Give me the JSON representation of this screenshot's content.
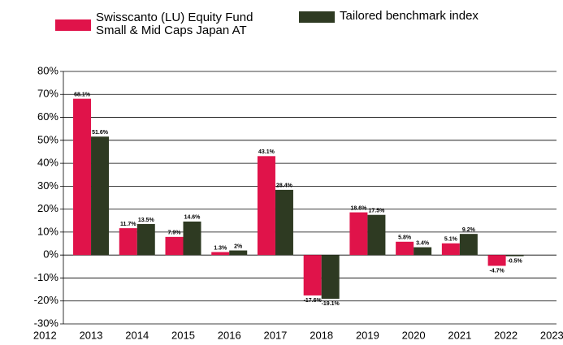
{
  "chart_data": {
    "type": "bar",
    "x": [
      2013,
      2014,
      2015,
      2016,
      2017,
      2018,
      2019,
      2020,
      2021,
      2022
    ],
    "xlim": [
      2012.4,
      2023.1
    ],
    "xticks": [
      2012,
      2013,
      2014,
      2015,
      2016,
      2017,
      2018,
      2019,
      2020,
      2021,
      2022,
      2023
    ],
    "ylim": [
      -30,
      80
    ],
    "yticks": [
      {
        "value": -30,
        "label": "-30%"
      },
      {
        "value": -20,
        "label": "-20%"
      },
      {
        "value": -10,
        "label": "-10%"
      },
      {
        "value": 0,
        "label": "0%"
      },
      {
        "value": 10,
        "label": "10%"
      },
      {
        "value": 20,
        "label": "20%"
      },
      {
        "value": 30,
        "label": "30%"
      },
      {
        "value": 40,
        "label": "40%"
      },
      {
        "value": 50,
        "label": "50%"
      },
      {
        "value": 60,
        "label": "60%"
      },
      {
        "value": 70,
        "label": "70%"
      },
      {
        "value": 80,
        "label": "80%"
      }
    ],
    "grid": true,
    "series": [
      {
        "name": "Swisscanto (LU) Equity Fund Small & Mid Caps Japan AT",
        "color": "#e0134a",
        "values": [
          68.1,
          11.7,
          7.9,
          1.3,
          43.1,
          -17.6,
          18.6,
          5.8,
          5.1,
          -4.7
        ],
        "value_labels": [
          "68.1%",
          "11.7%",
          "7.9%",
          "1.3%",
          "43.1%",
          "-17.6%",
          "18.6%",
          "5.8%",
          "5.1%",
          "-4.7%"
        ]
      },
      {
        "name": "Tailored benchmark index",
        "color": "#2e3a22",
        "values": [
          51.6,
          13.5,
          14.6,
          2,
          28.4,
          -19.1,
          17.5,
          3.4,
          9.2,
          -0.5
        ],
        "value_labels": [
          "51.6%",
          "13.5%",
          "14.6%",
          "2%",
          "28.4%",
          "-19.1%",
          "17.5%",
          "3.4%",
          "9.2%",
          "-0.5%"
        ]
      }
    ]
  }
}
